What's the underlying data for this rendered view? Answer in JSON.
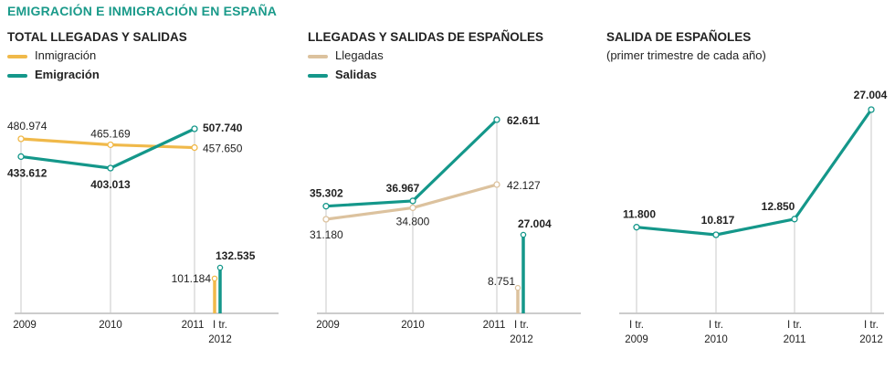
{
  "header": {
    "title": "EMIGRACIÓN E INMIGRACIÓN EN ESPAÑA"
  },
  "colors": {
    "immigration": "#f0b94a",
    "emigration": "#14978a",
    "llegadas": "#dcc29e",
    "axis": "#999999",
    "text": "#222222"
  },
  "panels": [
    {
      "title": "TOTAL LLEGADAS Y SALIDAS",
      "subtitle": "",
      "legend": [
        {
          "label": "Inmigración"
        },
        {
          "label": "Emigración"
        }
      ]
    },
    {
      "title": "LLEGADAS Y SALIDAS DE ESPAÑOLES",
      "subtitle": "",
      "legend": [
        {
          "label": "Llegadas"
        },
        {
          "label": "Salidas"
        }
      ]
    },
    {
      "title": "SALIDA DE ESPAÑOLES",
      "subtitle": "(primer trimestre de cada año)",
      "legend": []
    }
  ],
  "chart_data": [
    {
      "type": "line",
      "title": "TOTAL LLEGADAS Y SALIDAS",
      "categories": [
        "2009",
        "2010",
        "2011"
      ],
      "series": [
        {
          "name": "Inmigración",
          "values": [
            480974,
            465169,
            457650
          ],
          "labels": [
            "480.974",
            "465.169",
            "457.650"
          ]
        },
        {
          "name": "Emigración",
          "values": [
            433612,
            403013,
            507740
          ],
          "labels": [
            "433.612",
            "403.013",
            "507.740"
          ]
        }
      ],
      "extra_bars": {
        "category": [
          "I tr.",
          "2012"
        ],
        "values": [
          101184,
          132535
        ],
        "labels": [
          "101.184",
          "132.535"
        ]
      }
    },
    {
      "type": "line",
      "title": "LLEGADAS Y SALIDAS DE ESPAÑOLES",
      "categories": [
        "2009",
        "2010",
        "2011"
      ],
      "series": [
        {
          "name": "Llegadas",
          "values": [
            31180,
            34800,
            42127
          ],
          "labels": [
            "31.180",
            "34.800",
            "42.127"
          ]
        },
        {
          "name": "Salidas",
          "values": [
            35302,
            36967,
            62611
          ],
          "labels": [
            "35.302",
            "36.967",
            "62.611"
          ]
        }
      ],
      "extra_bars": {
        "category": [
          "I tr.",
          "2012"
        ],
        "values": [
          8751,
          27004
        ],
        "labels": [
          "8.751",
          "27.004"
        ]
      }
    },
    {
      "type": "line",
      "title": "SALIDA DE ESPAÑOLES",
      "subtitle": "(primer trimestre de cada año)",
      "categories": [
        [
          "I tr.",
          "2009"
        ],
        [
          "I tr.",
          "2010"
        ],
        [
          "I tr.",
          "2011"
        ],
        [
          "I tr.",
          "2012"
        ]
      ],
      "series": [
        {
          "name": "Salidas",
          "values": [
            11800,
            10817,
            12850,
            27004
          ],
          "labels": [
            "11.800",
            "10.817",
            "12.850",
            "27.004"
          ]
        }
      ]
    }
  ]
}
